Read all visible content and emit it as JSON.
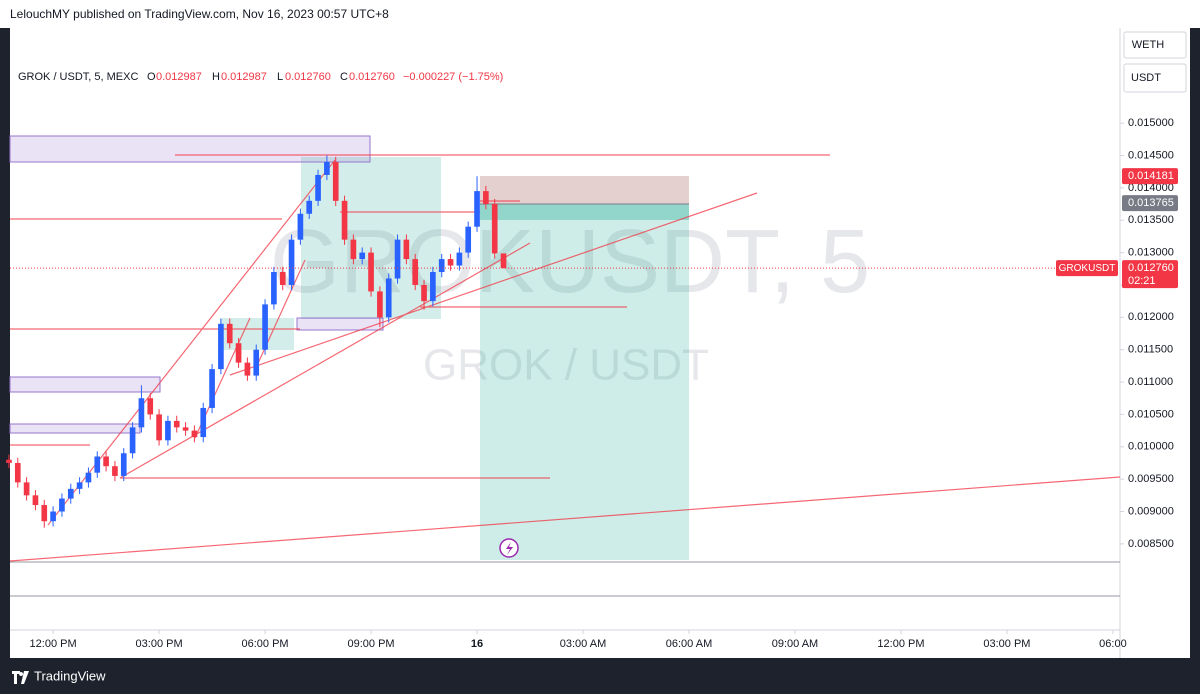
{
  "header": {
    "published": "LelouchMY published on TradingView.com, Nov 16, 2023 00:57 UTC+8"
  },
  "legend": {
    "symbol": "GROK / USDT, 5, MEXC",
    "o_label": "O",
    "o": "0.012987",
    "h_label": "H",
    "h": "0.012987",
    "l_label": "L",
    "l": "0.012760",
    "c_label": "C",
    "c": "0.012760",
    "change": "−0.000227 (−1.75%)"
  },
  "watermark": {
    "line1": "GROKUSDT, 5",
    "line2": "GROK / USDT"
  },
  "buttons": [
    "WETH",
    "USDT"
  ],
  "footer": {
    "brand": "TradingView"
  },
  "chart_data": {
    "type": "candlestick",
    "x": [
      10.75,
      11,
      11.25,
      11.5,
      11.75,
      12,
      12.25,
      12.5,
      12.75,
      13,
      13.25,
      13.5,
      13.75,
      14,
      14.25,
      14.5,
      14.75,
      15,
      15.25,
      15.5,
      15.75,
      16,
      16.25,
      16.5,
      16.75,
      17,
      17.25,
      17.5,
      17.75,
      18,
      18.25,
      18.5,
      18.75,
      19,
      19.25,
      19.5,
      19.75,
      20,
      20.25,
      20.5,
      20.75,
      21,
      21.25,
      21.5,
      21.75,
      22,
      22.25,
      22.5,
      22.75,
      23,
      23.25,
      23.5,
      23.75,
      24,
      24.25,
      24.5,
      24.75
    ],
    "open": [
      0.0098,
      0.00975,
      0.00945,
      0.00925,
      0.0091,
      0.00885,
      0.009,
      0.0092,
      0.00935,
      0.00945,
      0.0096,
      0.00985,
      0.0097,
      0.00955,
      0.0099,
      0.0103,
      0.01075,
      0.0105,
      0.0101,
      0.0104,
      0.0103,
      0.01025,
      0.01015,
      0.0106,
      0.0112,
      0.0119,
      0.0116,
      0.0113,
      0.0111,
      0.0115,
      0.0122,
      0.0127,
      0.0125,
      0.0132,
      0.0136,
      0.0138,
      0.0142,
      0.0144,
      0.0138,
      0.0132,
      0.0129,
      0.013,
      0.0124,
      0.012,
      0.0126,
      0.0132,
      0.0129,
      0.0125,
      0.01225,
      0.0127,
      0.0129,
      0.0128,
      0.013,
      0.0134,
      0.01395,
      0.01375,
      0.012987
    ],
    "high": [
      0.00988,
      0.00983,
      0.00953,
      0.00933,
      0.00918,
      0.00908,
      0.00928,
      0.00943,
      0.00953,
      0.00968,
      0.00993,
      0.00993,
      0.00978,
      0.00998,
      0.01038,
      0.01095,
      0.01083,
      0.01058,
      0.01048,
      0.01048,
      0.01038,
      0.01033,
      0.01068,
      0.01128,
      0.01198,
      0.01198,
      0.01168,
      0.01138,
      0.01158,
      0.01228,
      0.01278,
      0.01278,
      0.01328,
      0.01368,
      0.01388,
      0.01428,
      0.0145,
      0.01448,
      0.01388,
      0.01328,
      0.01308,
      0.01308,
      0.01248,
      0.01268,
      0.01328,
      0.01328,
      0.01298,
      0.01258,
      0.01278,
      0.01298,
      0.01298,
      0.01308,
      0.01348,
      0.01418,
      0.01403,
      0.01383,
      0.012987
    ],
    "low": [
      0.00967,
      0.00937,
      0.00917,
      0.00902,
      0.00875,
      0.00877,
      0.00892,
      0.00912,
      0.00927,
      0.00937,
      0.00952,
      0.00962,
      0.00947,
      0.00947,
      0.00982,
      0.01022,
      0.01042,
      0.01002,
      0.01002,
      0.01022,
      0.01017,
      0.01007,
      0.01007,
      0.01052,
      0.01112,
      0.01152,
      0.01122,
      0.01102,
      0.01102,
      0.01142,
      0.01212,
      0.01242,
      0.01242,
      0.01312,
      0.01352,
      0.01372,
      0.01412,
      0.01372,
      0.01312,
      0.01282,
      0.01282,
      0.01232,
      0.01185,
      0.01192,
      0.01252,
      0.01282,
      0.01242,
      0.01212,
      0.01217,
      0.01262,
      0.01272,
      0.01272,
      0.01292,
      0.01332,
      0.01367,
      0.01291,
      0.01276
    ],
    "close": [
      0.00975,
      0.00945,
      0.00925,
      0.0091,
      0.00885,
      0.009,
      0.0092,
      0.00935,
      0.00945,
      0.0096,
      0.00985,
      0.0097,
      0.00955,
      0.0099,
      0.0103,
      0.01075,
      0.0105,
      0.0101,
      0.0104,
      0.0103,
      0.01025,
      0.01015,
      0.0106,
      0.0112,
      0.0119,
      0.0116,
      0.0113,
      0.0111,
      0.0115,
      0.0122,
      0.0127,
      0.0125,
      0.0132,
      0.0136,
      0.0138,
      0.0142,
      0.0144,
      0.0138,
      0.0132,
      0.0129,
      0.013,
      0.0124,
      0.012,
      0.0126,
      0.0132,
      0.0129,
      0.0125,
      0.01225,
      0.0127,
      0.0129,
      0.0128,
      0.013,
      0.0134,
      0.01395,
      0.01375,
      0.012987,
      0.01276
    ],
    "up_color": "#2962ff",
    "down_color": "#f23645",
    "xlim": [
      10.78,
      42.2
    ],
    "xticks": [
      {
        "value": 12,
        "label": "12:00 PM"
      },
      {
        "value": 15,
        "label": "03:00 PM"
      },
      {
        "value": 18,
        "label": "06:00 PM"
      },
      {
        "value": 21,
        "label": "09:00 PM"
      },
      {
        "value": 24,
        "label": "16"
      },
      {
        "value": 27,
        "label": "03:00 AM"
      },
      {
        "value": 30,
        "label": "06:00 AM"
      },
      {
        "value": 33,
        "label": "09:00 AM"
      },
      {
        "value": 36,
        "label": "12:00 PM"
      },
      {
        "value": 39,
        "label": "03:00 PM"
      },
      {
        "value": 42,
        "label": "06:00"
      }
    ],
    "ylim": [
      0.00822,
      0.01647
    ],
    "yticks": [
      {
        "value": 0.0085,
        "label": "0.008500"
      },
      {
        "value": 0.009,
        "label": "0.009000"
      },
      {
        "value": 0.0095,
        "label": "0.009500"
      },
      {
        "value": 0.01,
        "label": "0.010000"
      },
      {
        "value": 0.0105,
        "label": "0.010500"
      },
      {
        "value": 0.011,
        "label": "0.011000"
      },
      {
        "value": 0.0115,
        "label": "0.011500"
      },
      {
        "value": 0.012,
        "label": "0.012000"
      },
      {
        "value": 0.0125,
        "label": "0.012500"
      },
      {
        "value": 0.013,
        "label": "0.013000"
      },
      {
        "value": 0.0135,
        "label": "0.013500"
      },
      {
        "value": 0.014,
        "label": "0.014000"
      },
      {
        "value": 0.0145,
        "label": "0.014500"
      },
      {
        "value": 0.015,
        "label": "0.015000"
      }
    ],
    "price_labels": [
      {
        "value": 0.014181,
        "label": "0.014181",
        "color": "#f23645"
      },
      {
        "value": 0.013765,
        "label": "0.013765",
        "color": "#787b86"
      }
    ],
    "last_price": {
      "value": 0.01276,
      "label": "0.012760",
      "symbol": "GROKUSDT",
      "countdown": "02:21",
      "color": "#f23645"
    }
  }
}
